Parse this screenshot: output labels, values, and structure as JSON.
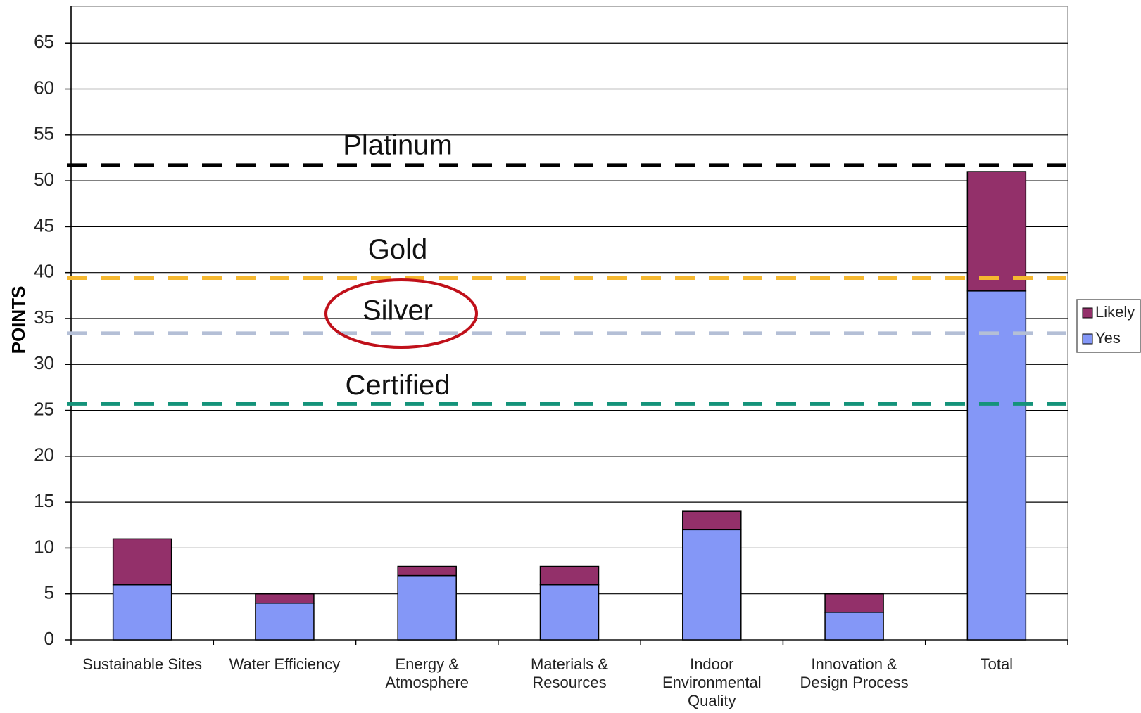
{
  "chart_data": {
    "type": "stacked_bar",
    "y_label": "POINTS",
    "categories": [
      "Sustainable Sites",
      "Water Efficiency",
      "Energy & Atmosphere",
      "Materials & Resources",
      "Indoor Environmental Quality",
      "Innovation & Design Process",
      "Total"
    ],
    "series": [
      {
        "name": "Yes",
        "color": "#8497f7",
        "values": [
          6,
          4,
          7,
          6,
          12,
          3,
          38
        ]
      },
      {
        "name": "Likely",
        "color": "#93306a",
        "values": [
          5,
          1,
          1,
          2,
          2,
          2,
          13
        ]
      }
    ],
    "reference_lines": [
      {
        "name": "Platinum",
        "value": 51.7,
        "color": "#000000"
      },
      {
        "name": "Gold",
        "value": 39.4,
        "color": "#f5b830"
      },
      {
        "name": "Silver",
        "value": 33.4,
        "color": "#b4bfd6"
      },
      {
        "name": "Certified",
        "value": 25.7,
        "color": "#14937a"
      }
    ],
    "ylim": [
      0,
      69
    ],
    "yticks": [
      0,
      5,
      10,
      15,
      20,
      25,
      30,
      35,
      40,
      45,
      50,
      55,
      60,
      65
    ],
    "grid": true,
    "legend": "right"
  }
}
